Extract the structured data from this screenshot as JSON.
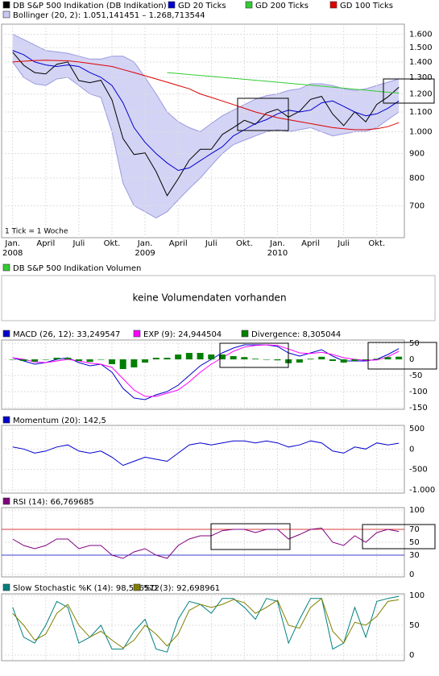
{
  "chart_data": [
    {
      "type": "line",
      "log_scale": true,
      "grid": true,
      "annotation": "1 Tick = 1 Woche",
      "x": [
        0,
        1,
        2,
        3,
        4,
        5,
        6,
        7,
        8,
        9,
        10,
        11,
        12,
        13,
        14,
        15,
        16,
        17,
        18,
        19,
        20,
        21,
        22,
        23,
        24,
        25,
        26,
        27,
        28,
        29,
        30,
        31,
        32,
        33,
        34,
        35
      ],
      "xlim": [
        -1,
        35.5
      ],
      "xticks": [
        {
          "value": 0,
          "label": "Jan."
        },
        {
          "value": 3,
          "label": "April"
        },
        {
          "value": 6,
          "label": "Juli"
        },
        {
          "value": 9,
          "label": "Okt."
        },
        {
          "value": 12,
          "label": "Jan."
        },
        {
          "value": 15,
          "label": "April"
        },
        {
          "value": 18,
          "label": "Juli"
        },
        {
          "value": 21,
          "label": "Okt."
        },
        {
          "value": 24,
          "label": "Jan."
        },
        {
          "value": 27,
          "label": "April"
        },
        {
          "value": 30,
          "label": "Juli"
        },
        {
          "value": 33,
          "label": "Okt."
        }
      ],
      "xtick_years": [
        {
          "value": 0,
          "label": "2008"
        },
        {
          "value": 12,
          "label": "2009"
        },
        {
          "value": 24,
          "label": "2010"
        }
      ],
      "ylim": [
        600,
        1680
      ],
      "yticks": [
        700,
        800,
        900,
        {
          "value": 1000,
          "label": "1.000"
        },
        {
          "value": 1100,
          "label": "1.100"
        },
        {
          "value": 1200,
          "label": "1.200"
        },
        {
          "value": 1300,
          "label": "1.300"
        },
        {
          "value": 1400,
          "label": "1.400"
        },
        {
          "value": 1500,
          "label": "1.500"
        },
        {
          "value": 1600,
          "label": "1.600"
        }
      ],
      "series": [
        {
          "name": "DB S&P 500 Indikation (DB Indikation)",
          "color": "#000000",
          "values": [
            1468,
            1378,
            1330,
            1322,
            1385,
            1400,
            1280,
            1267,
            1282,
            1166,
            968,
            896,
            903,
            825,
            735,
            797,
            872,
            919,
            919,
            987,
            1020,
            1057,
            1036,
            1095,
            1115,
            1073,
            1104,
            1169,
            1186,
            1089,
            1030,
            1101,
            1049,
            1141,
            1183,
            1240
          ]
        },
        {
          "name": "GD 20 Ticks",
          "color": "#0000cc",
          "values": [
            1480,
            1450,
            1400,
            1380,
            1370,
            1380,
            1370,
            1330,
            1300,
            1250,
            1150,
            1020,
            950,
            900,
            860,
            830,
            840,
            870,
            900,
            930,
            980,
            1010,
            1040,
            1060,
            1090,
            1110,
            1100,
            1110,
            1150,
            1160,
            1130,
            1100,
            1080,
            1090,
            1120,
            1160
          ]
        },
        {
          "name": "GD 200 Ticks",
          "color": "#33cc33",
          "values": [
            null,
            null,
            null,
            null,
            null,
            null,
            null,
            null,
            null,
            null,
            null,
            null,
            null,
            null,
            1330,
            1324,
            1318,
            1312,
            1306,
            1300,
            1294,
            1288,
            1282,
            1276,
            1270,
            1264,
            1258,
            1252,
            1246,
            1240,
            1234,
            1228,
            1222,
            1216,
            1210,
            1205
          ]
        },
        {
          "name": "GD 100 Ticks",
          "color": "#dd0000",
          "values": [
            1400,
            1405,
            1410,
            1412,
            1410,
            1408,
            1400,
            1390,
            1380,
            1370,
            1350,
            1330,
            1310,
            1290,
            1270,
            1250,
            1230,
            1200,
            1180,
            1160,
            1140,
            1120,
            1100,
            1085,
            1070,
            1060,
            1050,
            1040,
            1030,
            1020,
            1015,
            1010,
            1010,
            1015,
            1025,
            1045
          ]
        }
      ],
      "bands": [
        {
          "name": "Bollinger (20, 2): 1.051,141451 – 1.268,713544",
          "color": "#c8c8f2",
          "upper": [
            1600,
            1560,
            1520,
            1480,
            1470,
            1460,
            1440,
            1420,
            1420,
            1440,
            1440,
            1400,
            1300,
            1200,
            1100,
            1050,
            1020,
            1000,
            1040,
            1080,
            1110,
            1140,
            1170,
            1190,
            1200,
            1220,
            1230,
            1260,
            1260,
            1250,
            1230,
            1220,
            1230,
            1250,
            1270,
            1290
          ],
          "lower": [
            1400,
            1300,
            1260,
            1250,
            1290,
            1300,
            1250,
            1200,
            1180,
            1000,
            780,
            700,
            680,
            660,
            680,
            720,
            760,
            800,
            850,
            900,
            940,
            960,
            980,
            1000,
            1010,
            1000,
            1010,
            1020,
            1000,
            980,
            990,
            1000,
            1000,
            1020,
            1060,
            1100
          ]
        }
      ]
    },
    {
      "type": "message",
      "title": "DB S&P 500 Indikation Volumen",
      "color": "#33cc33",
      "message": "keine Volumendaten vorhanden"
    },
    {
      "type": "line",
      "grid": true,
      "ylim": [
        -155,
        60
      ],
      "yticks": [
        -150,
        -100,
        -50,
        0,
        50
      ],
      "series": [
        {
          "name": "MACD (26, 12): 33,249547",
          "color": "#0000cc",
          "values": [
            5,
            -5,
            -15,
            -10,
            0,
            5,
            -10,
            -20,
            -15,
            -40,
            -90,
            -120,
            -125,
            -110,
            -100,
            -80,
            -50,
            -20,
            0,
            20,
            35,
            45,
            45,
            45,
            40,
            20,
            10,
            20,
            30,
            10,
            -5,
            -5,
            -5,
            0,
            15,
            33.2
          ]
        },
        {
          "name": "EXP (9): 24,944504",
          "color": "#ff00ff",
          "values": [
            5,
            0,
            -8,
            -10,
            -5,
            0,
            -5,
            -12,
            -15,
            -25,
            -60,
            -95,
            -115,
            -115,
            -105,
            -95,
            -70,
            -40,
            -15,
            5,
            25,
            38,
            43,
            45,
            43,
            32,
            20,
            18,
            22,
            15,
            5,
            0,
            -3,
            -2,
            8,
            24.9
          ]
        },
        {
          "name": "Divergence: 8,305044",
          "color": "#008000",
          "kind": "bar",
          "values": [
            0,
            -5,
            -7,
            0,
            5,
            5,
            -5,
            -8,
            0,
            -15,
            -30,
            -25,
            -10,
            5,
            5,
            15,
            20,
            20,
            15,
            15,
            10,
            7,
            2,
            0,
            -3,
            -12,
            -10,
            2,
            8,
            -5,
            -10,
            -5,
            -2,
            2,
            7,
            8.3
          ]
        }
      ]
    },
    {
      "type": "line",
      "grid": true,
      "ylim": [
        -1079,
        578
      ],
      "yticks": [
        {
          "value": -1000,
          "label": "-1.000"
        },
        -500,
        0,
        500
      ],
      "series": [
        {
          "name": "Momentum (20): 142,5",
          "color": "#0000cc",
          "values": [
            50,
            0,
            -100,
            -50,
            50,
            100,
            -50,
            -100,
            -50,
            -200,
            -400,
            -300,
            -200,
            -250,
            -300,
            -100,
            100,
            150,
            100,
            150,
            200,
            200,
            150,
            200,
            150,
            50,
            100,
            200,
            150,
            -50,
            -100,
            50,
            0,
            150,
            100,
            142.5
          ]
        }
      ]
    },
    {
      "type": "line",
      "grid": true,
      "ylim": [
        -3.75,
        103.75
      ],
      "yticks": [
        0,
        30,
        50,
        70,
        100
      ],
      "ref_lines": [
        {
          "value": 70,
          "color": "#cc0000"
        },
        {
          "value": 30,
          "color": "#0000cc"
        }
      ],
      "series": [
        {
          "name": "RSI (14): 66,769685",
          "color": "#800080",
          "values": [
            55,
            45,
            40,
            45,
            55,
            55,
            40,
            45,
            45,
            30,
            25,
            35,
            40,
            30,
            25,
            45,
            55,
            60,
            60,
            68,
            70,
            70,
            65,
            70,
            70,
            55,
            62,
            70,
            72,
            50,
            45,
            60,
            50,
            65,
            70,
            66.8
          ]
        }
      ]
    },
    {
      "type": "line",
      "grid": true,
      "ylim": [
        -9.5,
        102.7
      ],
      "yticks": [
        0,
        50,
        100
      ],
      "series": [
        {
          "name": "Slow Stochastic %K (14): 98,556572",
          "color": "#008080",
          "values": [
            80,
            30,
            20,
            50,
            90,
            80,
            20,
            30,
            50,
            10,
            10,
            40,
            60,
            10,
            5,
            60,
            90,
            85,
            70,
            95,
            95,
            80,
            60,
            95,
            90,
            20,
            60,
            95,
            95,
            10,
            20,
            80,
            30,
            90,
            95,
            98.5
          ]
        },
        {
          "name": "%D (3): 92,698961",
          "color": "#808000",
          "values": [
            70,
            50,
            25,
            35,
            70,
            85,
            50,
            30,
            40,
            25,
            12,
            25,
            50,
            35,
            15,
            35,
            75,
            85,
            80,
            85,
            93,
            88,
            70,
            80,
            92,
            50,
            45,
            80,
            95,
            40,
            20,
            55,
            50,
            65,
            90,
            92.7
          ]
        }
      ]
    }
  ]
}
